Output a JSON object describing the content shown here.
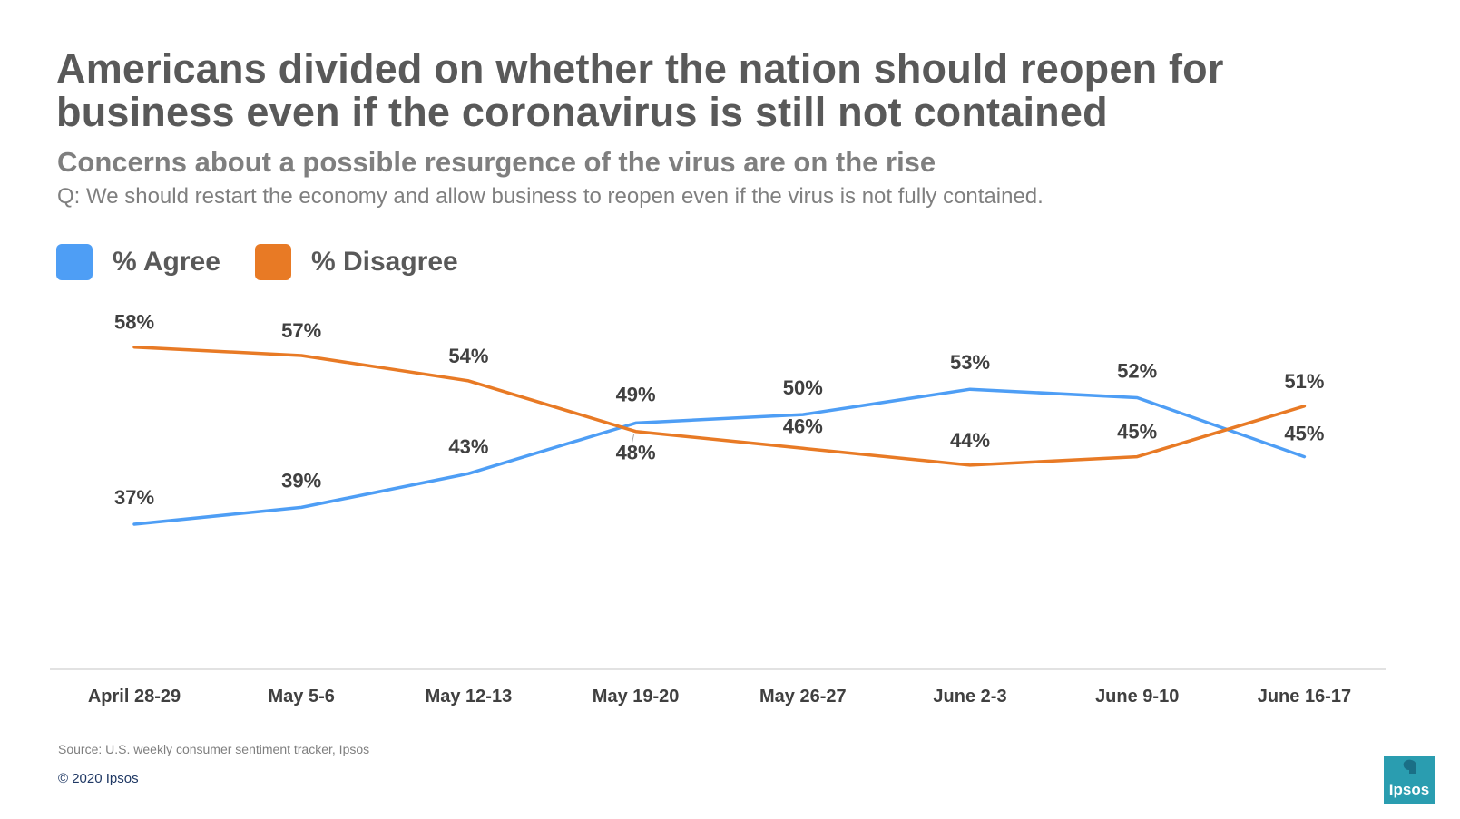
{
  "title_line1": "Americans divided on whether the nation should reopen for",
  "title_line2": "business even if the coronavirus is still not contained",
  "subtitle": "Concerns about a possible resurgence of the virus are on the rise",
  "question": "Q: We should restart the economy and allow business to reopen even if the virus is not fully contained.",
  "legend": [
    {
      "label": "% Agree",
      "color": "#4e9ef5"
    },
    {
      "label": "% Disagree",
      "color": "#e87a25"
    }
  ],
  "chart_data": {
    "type": "line",
    "title": "Americans divided on whether the nation should reopen for business even if the coronavirus is still not contained",
    "categories": [
      "April 28-29",
      "May 5-6",
      "May 12-13",
      "May 19-20",
      "May 26-27",
      "June 2-3",
      "June 9-10",
      "June 16-17"
    ],
    "series": [
      {
        "name": "% Agree",
        "color": "#4e9ef5",
        "values": [
          37,
          39,
          43,
          49,
          50,
          53,
          52,
          45
        ],
        "labels": [
          "37%",
          "39%",
          "43%",
          "49%",
          "50%",
          "53%",
          "52%",
          "45%"
        ]
      },
      {
        "name": "% Disagree",
        "color": "#e87a25",
        "values": [
          58,
          57,
          54,
          48,
          46,
          44,
          45,
          51
        ],
        "labels": [
          "58%",
          "57%",
          "54%",
          "48%",
          "46%",
          "44%",
          "45%",
          "51%"
        ]
      }
    ],
    "xlabel": "",
    "ylabel": "",
    "legend_position": "top-left"
  },
  "source": "Source: U.S. weekly consumer sentiment tracker, Ipsos",
  "copyright": "© 2020 Ipsos",
  "logo_text": "Ipsos"
}
